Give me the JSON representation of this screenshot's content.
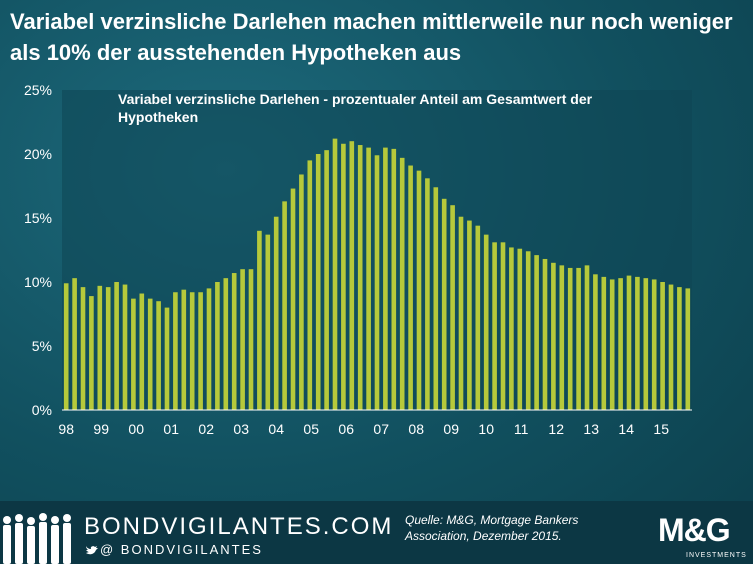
{
  "header": {
    "title": "Variabel verzinsliche Darlehen machen mittlerweile nur noch weniger als 10% der ausstehenden Hypotheken aus"
  },
  "chart_data": {
    "type": "bar",
    "title": "Variabel verzinsliche Darlehen - prozentualer Anteil am Gesamtwert der Hypotheken",
    "xlabel": "",
    "ylabel": "",
    "ylim": [
      0,
      25
    ],
    "yticks": [
      "0%",
      "5%",
      "10%",
      "15%",
      "20%",
      "25%"
    ],
    "xticks": [
      "98",
      "99",
      "00",
      "01",
      "02",
      "03",
      "04",
      "05",
      "06",
      "07",
      "08",
      "09",
      "10",
      "11",
      "12",
      "13",
      "14",
      "15"
    ],
    "bar_color": "#b6c93b",
    "values": [
      9.9,
      10.3,
      9.6,
      8.9,
      9.7,
      9.6,
      10.0,
      9.8,
      8.7,
      9.1,
      8.7,
      8.5,
      8.0,
      9.2,
      9.4,
      9.2,
      9.2,
      9.5,
      10.0,
      10.3,
      10.7,
      11.0,
      11.0,
      14.0,
      13.7,
      15.1,
      16.3,
      17.3,
      18.4,
      19.5,
      20.0,
      20.3,
      21.2,
      20.8,
      21.0,
      20.7,
      20.5,
      19.9,
      20.5,
      20.4,
      19.7,
      19.1,
      18.7,
      18.1,
      17.4,
      16.5,
      16.0,
      15.1,
      14.8,
      14.4,
      13.7,
      13.1,
      13.1,
      12.7,
      12.6,
      12.4,
      12.1,
      11.8,
      11.5,
      11.3,
      11.1,
      11.1,
      11.3,
      10.6,
      10.4,
      10.2,
      10.3,
      10.5,
      10.4,
      10.3,
      10.2,
      10.0,
      9.8,
      9.6,
      9.5
    ]
  },
  "footer": {
    "brand": "BONDVIGILANTES.COM",
    "handle": "@ BONDVIGILANTES",
    "source": "Quelle: M&G, Mortgage Bankers Association, Dezember 2015.",
    "logo": "M&G",
    "logo_sub": "INVESTMENTS",
    "twitter_icon": "twitter-bird-icon"
  },
  "colors": {
    "background": "#11505f",
    "plot_bg": "#0e4654",
    "text": "#ffffff"
  }
}
